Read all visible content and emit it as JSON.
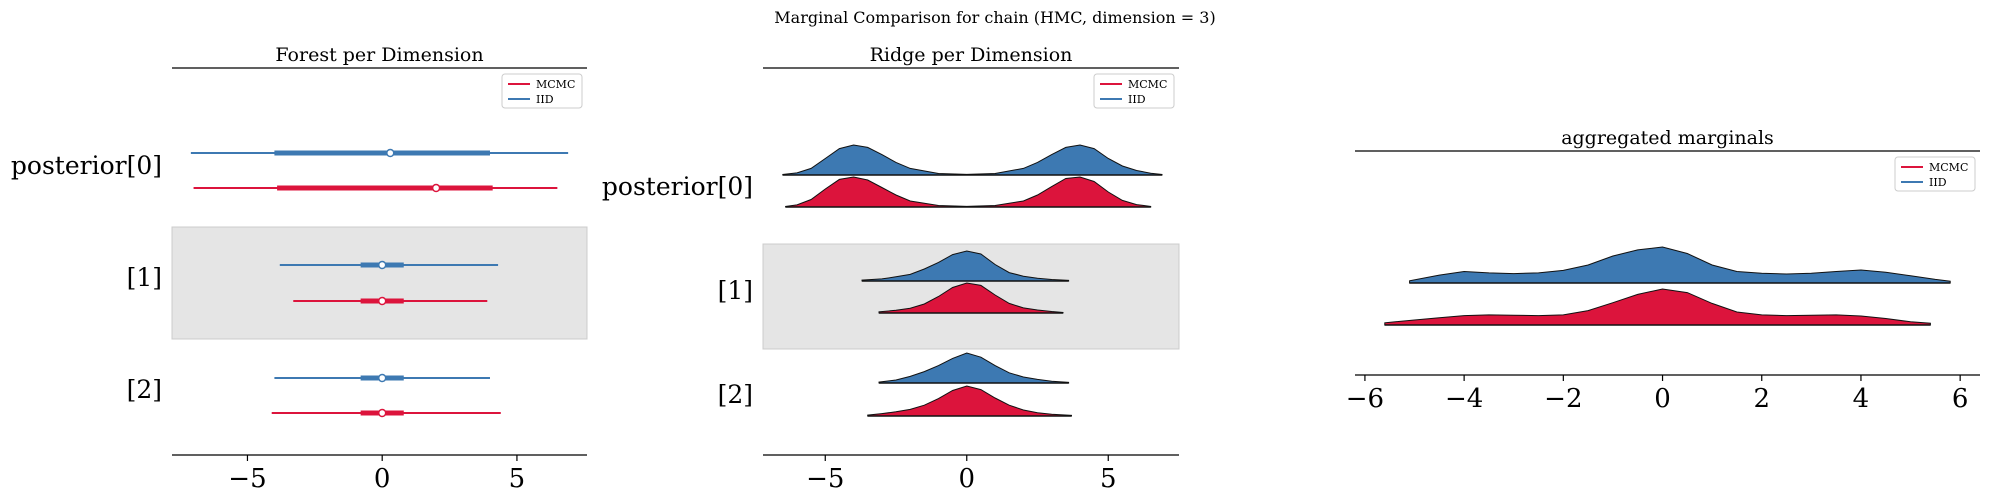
{
  "suptitle": "Marginal Comparison for chain (HMC, dimension = 3)",
  "colors": {
    "mcmc": "#dc143c",
    "iid": "#3d79b2",
    "band": "#e5e5e5"
  },
  "chart_data": [
    {
      "type": "forest",
      "title": "Forest per Dimension",
      "xlim": [
        -7.8,
        7.6
      ],
      "xticks": [
        -5,
        0,
        5
      ],
      "xtick_labels": [
        "−5",
        "0",
        "5"
      ],
      "ylabels": [
        "posterior[0]",
        "[1]",
        "[2]"
      ],
      "shaded_band": 1,
      "legend": [
        "MCMC",
        "IID"
      ],
      "rows": [
        {
          "label": "posterior[0]",
          "iid": {
            "hdi94": [
              -7.1,
              6.9
            ],
            "hdi50": [
              -4.0,
              4.0
            ],
            "point": 0.3
          },
          "mcmc": {
            "hdi94": [
              -7.0,
              6.5
            ],
            "hdi50": [
              -3.9,
              4.1
            ],
            "point": 2.0
          }
        },
        {
          "label": "[1]",
          "iid": {
            "hdi94": [
              -3.8,
              4.3
            ],
            "hdi50": [
              -0.8,
              0.8
            ],
            "point": 0.0
          },
          "mcmc": {
            "hdi94": [
              -3.3,
              3.9
            ],
            "hdi50": [
              -0.8,
              0.8
            ],
            "point": 0.0
          }
        },
        {
          "label": "[2]",
          "iid": {
            "hdi94": [
              -4.0,
              4.0
            ],
            "hdi50": [
              -0.8,
              0.8
            ],
            "point": 0.0
          },
          "mcmc": {
            "hdi94": [
              -4.1,
              4.4
            ],
            "hdi50": [
              -0.8,
              0.8
            ],
            "point": 0.0
          }
        }
      ]
    },
    {
      "type": "ridge",
      "title": "Ridge per Dimension",
      "xlim": [
        -7.2,
        7.5
      ],
      "xticks": [
        -5,
        0,
        5
      ],
      "xtick_labels": [
        "−5",
        "0",
        "5"
      ],
      "ylabels": [
        "posterior[0]",
        "[1]",
        "[2]"
      ],
      "shaded_band": 1,
      "legend": [
        "MCMC",
        "IID"
      ],
      "rows": [
        {
          "label": "posterior[0]",
          "iid": {
            "x": [
              -6.5,
              -6,
              -5.5,
              -5,
              -4.5,
              -4,
              -3.5,
              -3,
              -2.5,
              -2,
              -1,
              0,
              1,
              2,
              2.5,
              3,
              3.5,
              4,
              4.5,
              5,
              5.5,
              6,
              6.5,
              6.9
            ],
            "y": [
              0.02,
              0.07,
              0.22,
              0.55,
              0.88,
              1.0,
              0.92,
              0.68,
              0.42,
              0.22,
              0.05,
              0.02,
              0.05,
              0.22,
              0.42,
              0.68,
              0.92,
              1.0,
              0.88,
              0.55,
              0.3,
              0.15,
              0.06,
              0.02
            ]
          },
          "mcmc": {
            "x": [
              -6.4,
              -6,
              -5.5,
              -5,
              -4.5,
              -4,
              -3.5,
              -3,
              -2.5,
              -2,
              -1,
              0,
              1,
              2,
              2.5,
              3,
              3.5,
              4,
              4.5,
              5,
              5.5,
              6,
              6.5
            ],
            "y": [
              0.02,
              0.07,
              0.25,
              0.6,
              0.92,
              1.0,
              0.9,
              0.65,
              0.4,
              0.2,
              0.05,
              0.02,
              0.05,
              0.2,
              0.4,
              0.68,
              0.95,
              1.0,
              0.85,
              0.5,
              0.22,
              0.08,
              0.02
            ]
          }
        },
        {
          "label": "[1]",
          "iid": {
            "x": [
              -3.7,
              -3,
              -2.5,
              -2,
              -1.5,
              -1,
              -0.5,
              0,
              0.5,
              1,
              1.5,
              2,
              2.5,
              3,
              3.6
            ],
            "y": [
              0.03,
              0.07,
              0.14,
              0.22,
              0.4,
              0.62,
              0.88,
              1.0,
              0.9,
              0.55,
              0.28,
              0.16,
              0.09,
              0.05,
              0.02
            ]
          },
          "mcmc": {
            "x": [
              -3.1,
              -2.5,
              -2,
              -1.5,
              -1,
              -0.5,
              0,
              0.5,
              1,
              1.5,
              2,
              2.5,
              3,
              3.4
            ],
            "y": [
              0.04,
              0.09,
              0.16,
              0.3,
              0.55,
              0.85,
              1.0,
              0.92,
              0.6,
              0.32,
              0.17,
              0.1,
              0.05,
              0.02
            ]
          }
        },
        {
          "label": "[2]",
          "iid": {
            "x": [
              -3.1,
              -2.5,
              -2,
              -1.5,
              -1,
              -0.5,
              0,
              0.5,
              1,
              1.5,
              2,
              2.5,
              3,
              3.6
            ],
            "y": [
              0.03,
              0.1,
              0.22,
              0.38,
              0.58,
              0.82,
              1.0,
              0.86,
              0.58,
              0.34,
              0.2,
              0.12,
              0.06,
              0.02
            ]
          },
          "mcmc": {
            "x": [
              -3.5,
              -3,
              -2.5,
              -2,
              -1.5,
              -1,
              -0.5,
              0,
              0.5,
              1,
              1.5,
              2,
              2.5,
              3,
              3.7
            ],
            "y": [
              0.03,
              0.08,
              0.14,
              0.22,
              0.36,
              0.58,
              0.85,
              1.0,
              0.88,
              0.6,
              0.36,
              0.2,
              0.11,
              0.06,
              0.02
            ]
          }
        }
      ]
    },
    {
      "type": "ridge",
      "title": "aggregated marginals",
      "xlim": [
        -6.2,
        6.4
      ],
      "xticks": [
        -6,
        -4,
        -2,
        0,
        2,
        4,
        6
      ],
      "xtick_labels": [
        "−6",
        "−4",
        "−2",
        "0",
        "2",
        "4",
        "6"
      ],
      "legend": [
        "MCMC",
        "IID"
      ],
      "rows": [
        {
          "label": "",
          "iid": {
            "x": [
              -5.1,
              -4.5,
              -4,
              -3.5,
              -3,
              -2.5,
              -2,
              -1.5,
              -1,
              -0.5,
              0,
              0.5,
              1,
              1.5,
              2,
              2.5,
              3,
              3.5,
              4,
              4.5,
              5,
              5.5,
              5.8
            ],
            "y": [
              0.06,
              0.22,
              0.32,
              0.28,
              0.26,
              0.28,
              0.35,
              0.5,
              0.75,
              0.92,
              1.0,
              0.82,
              0.5,
              0.32,
              0.27,
              0.25,
              0.27,
              0.32,
              0.36,
              0.3,
              0.2,
              0.1,
              0.05
            ]
          },
          "mcmc": {
            "x": [
              -5.6,
              -5,
              -4.5,
              -4,
              -3.5,
              -3,
              -2.5,
              -2,
              -1.5,
              -1,
              -0.5,
              0,
              0.5,
              1,
              1.5,
              2,
              2.5,
              3,
              3.5,
              4,
              4.5,
              5,
              5.4
            ],
            "y": [
              0.06,
              0.14,
              0.2,
              0.26,
              0.28,
              0.27,
              0.26,
              0.28,
              0.4,
              0.62,
              0.85,
              1.0,
              0.9,
              0.6,
              0.36,
              0.28,
              0.26,
              0.27,
              0.28,
              0.25,
              0.18,
              0.09,
              0.05
            ]
          }
        }
      ]
    }
  ]
}
